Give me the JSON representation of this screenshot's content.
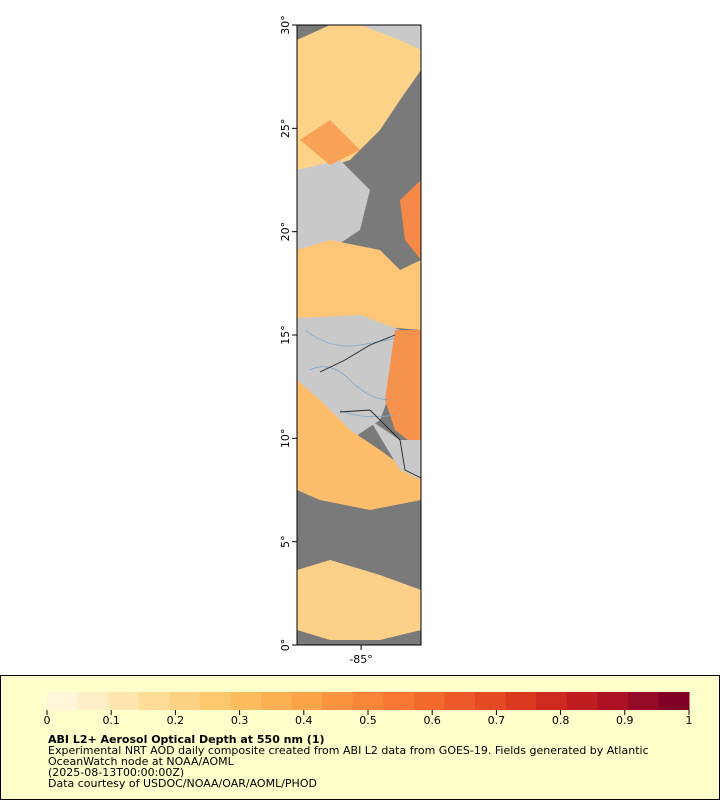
{
  "map": {
    "lat_axis": {
      "lim": [
        0,
        30
      ],
      "ticks": [
        {
          "value": 0,
          "label": "0°"
        },
        {
          "value": 5,
          "label": "5°"
        },
        {
          "value": 10,
          "label": "10°"
        },
        {
          "value": 15,
          "label": "15°"
        },
        {
          "value": 20,
          "label": "20°"
        },
        {
          "value": 25,
          "label": "25°"
        },
        {
          "value": 30,
          "label": "30°"
        }
      ]
    },
    "lon_axis": {
      "lim": [
        -88.1,
        -82.1
      ],
      "ticks": [
        {
          "value": -85,
          "label": "-85°"
        }
      ]
    }
  },
  "colorbar": {
    "lim": [
      0,
      1
    ],
    "ticks": [
      0,
      0.1,
      0.2,
      0.3,
      0.4,
      0.5,
      0.6,
      0.7,
      0.8,
      0.9,
      1
    ],
    "colors": [
      "#fff5d8",
      "#ffefc6",
      "#ffe6ae",
      "#fedd98",
      "#fed283",
      "#fdc86d",
      "#fdbd5e",
      "#fdb051",
      "#fca247",
      "#fb943f",
      "#f98638",
      "#f67832",
      "#f2692c",
      "#ed5a27",
      "#e64a22",
      "#dc3a1f",
      "#cf2a1e",
      "#bf1d20",
      "#ab1324",
      "#950b27",
      "#800026"
    ],
    "title": "ABI L2+ Aerosol Optical Depth at 550 nm (1)",
    "lines": [
      "Experimental NRT AOD daily composite created from ABI L2 data from GOES-19. Fields generated by Atlantic",
      "OceanWatch node at NOAA/AOML",
      "(2025-08-13T00:00:00Z)",
      "Data courtesy of USDOC/NOAA/OAR/AOML/PHOD"
    ]
  }
}
